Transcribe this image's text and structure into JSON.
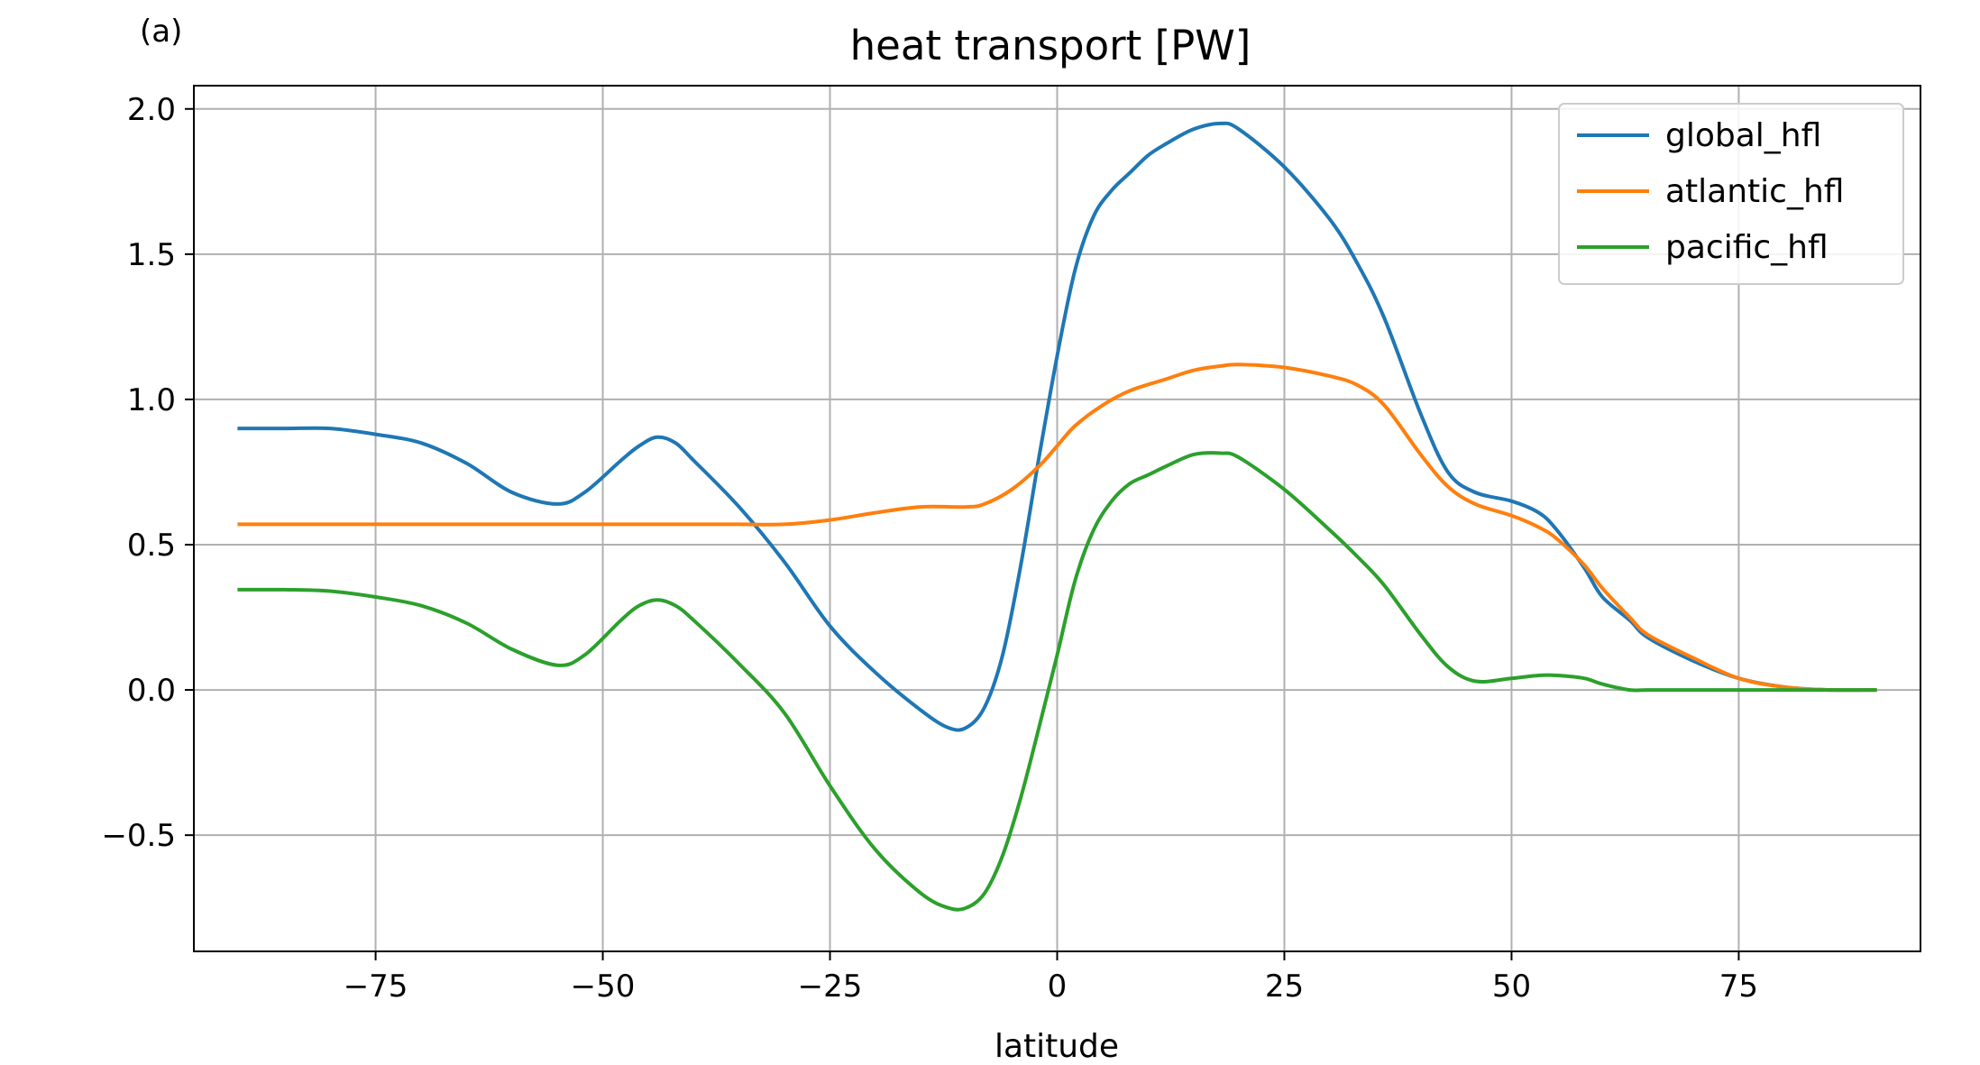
{
  "panel_label": "(a)",
  "chart_data": {
    "type": "line",
    "title": "heat transport [PW]",
    "xlabel": "latitude",
    "ylabel": "",
    "xlim": [
      -95,
      95
    ],
    "ylim": [
      -0.9,
      2.08
    ],
    "xticks": [
      -75,
      -50,
      -25,
      0,
      25,
      50,
      75
    ],
    "xtick_labels": [
      "−75",
      "−50",
      "−25",
      "0",
      "25",
      "50",
      "75"
    ],
    "yticks": [
      -0.5,
      0.0,
      0.5,
      1.0,
      1.5,
      2.0
    ],
    "ytick_labels": [
      "−0.5",
      "0.0",
      "0.5",
      "1.0",
      "1.5",
      "2.0"
    ],
    "grid": true,
    "legend_position": "top-right",
    "series": [
      {
        "name": "global_hfl",
        "color": "#1f77b4",
        "x": [
          -90,
          -85,
          -80,
          -75,
          -70,
          -65,
          -60,
          -55,
          -52,
          -48,
          -46,
          -44,
          -42,
          -40,
          -35,
          -30,
          -25,
          -20,
          -15,
          -12,
          -10,
          -8,
          -6,
          -4,
          -2,
          0,
          2,
          4,
          6,
          8,
          10,
          12,
          15,
          18,
          20,
          25,
          30,
          33,
          36,
          40,
          43,
          46,
          50,
          53,
          55,
          58,
          60,
          63,
          65,
          70,
          75,
          80,
          85,
          90
        ],
        "y": [
          0.9,
          0.9,
          0.9,
          0.88,
          0.85,
          0.78,
          0.68,
          0.64,
          0.68,
          0.79,
          0.84,
          0.87,
          0.85,
          0.79,
          0.63,
          0.44,
          0.22,
          0.06,
          -0.07,
          -0.13,
          -0.13,
          -0.06,
          0.12,
          0.43,
          0.8,
          1.15,
          1.45,
          1.63,
          1.72,
          1.78,
          1.84,
          1.88,
          1.93,
          1.95,
          1.93,
          1.8,
          1.62,
          1.47,
          1.28,
          0.95,
          0.75,
          0.68,
          0.65,
          0.61,
          0.55,
          0.42,
          0.32,
          0.24,
          0.18,
          0.1,
          0.04,
          0.01,
          0.0,
          0.0
        ]
      },
      {
        "name": "atlantic_hfl",
        "color": "#ff7f0e",
        "x": [
          -90,
          -80,
          -70,
          -60,
          -50,
          -40,
          -35,
          -30,
          -25,
          -20,
          -15,
          -10,
          -8,
          -5,
          -2,
          0,
          2,
          5,
          8,
          12,
          15,
          18,
          20,
          25,
          30,
          33,
          36,
          40,
          43,
          46,
          50,
          53,
          55,
          58,
          60,
          63,
          65,
          70,
          75,
          80,
          85,
          90
        ],
        "y": [
          0.57,
          0.57,
          0.57,
          0.57,
          0.57,
          0.57,
          0.57,
          0.57,
          0.585,
          0.61,
          0.63,
          0.63,
          0.64,
          0.69,
          0.77,
          0.84,
          0.91,
          0.98,
          1.03,
          1.07,
          1.1,
          1.115,
          1.12,
          1.11,
          1.08,
          1.05,
          0.98,
          0.81,
          0.7,
          0.64,
          0.6,
          0.56,
          0.52,
          0.43,
          0.35,
          0.25,
          0.19,
          0.11,
          0.04,
          0.01,
          0.0,
          0.0
        ]
      },
      {
        "name": "pacific_hfl",
        "color": "#2ca02c",
        "x": [
          -90,
          -85,
          -80,
          -75,
          -70,
          -65,
          -60,
          -55,
          -52,
          -48,
          -46,
          -44,
          -42,
          -40,
          -35,
          -30,
          -25,
          -20,
          -15,
          -12,
          -10,
          -8,
          -6,
          -4,
          -2,
          0,
          2,
          4,
          6,
          8,
          10,
          12,
          15,
          18,
          20,
          25,
          30,
          33,
          36,
          40,
          43,
          46,
          50,
          53,
          55,
          58,
          60,
          63,
          65,
          70,
          75,
          80,
          85,
          90
        ],
        "y": [
          0.345,
          0.345,
          0.34,
          0.32,
          0.29,
          0.23,
          0.14,
          0.085,
          0.12,
          0.24,
          0.29,
          0.31,
          0.29,
          0.24,
          0.09,
          -0.08,
          -0.33,
          -0.55,
          -0.7,
          -0.75,
          -0.75,
          -0.7,
          -0.57,
          -0.37,
          -0.13,
          0.12,
          0.38,
          0.55,
          0.65,
          0.71,
          0.74,
          0.77,
          0.81,
          0.815,
          0.8,
          0.69,
          0.55,
          0.46,
          0.36,
          0.19,
          0.08,
          0.03,
          0.04,
          0.05,
          0.05,
          0.04,
          0.02,
          0.0,
          0.0,
          0.0,
          0.0,
          0.0,
          0.0,
          0.0
        ]
      }
    ]
  }
}
